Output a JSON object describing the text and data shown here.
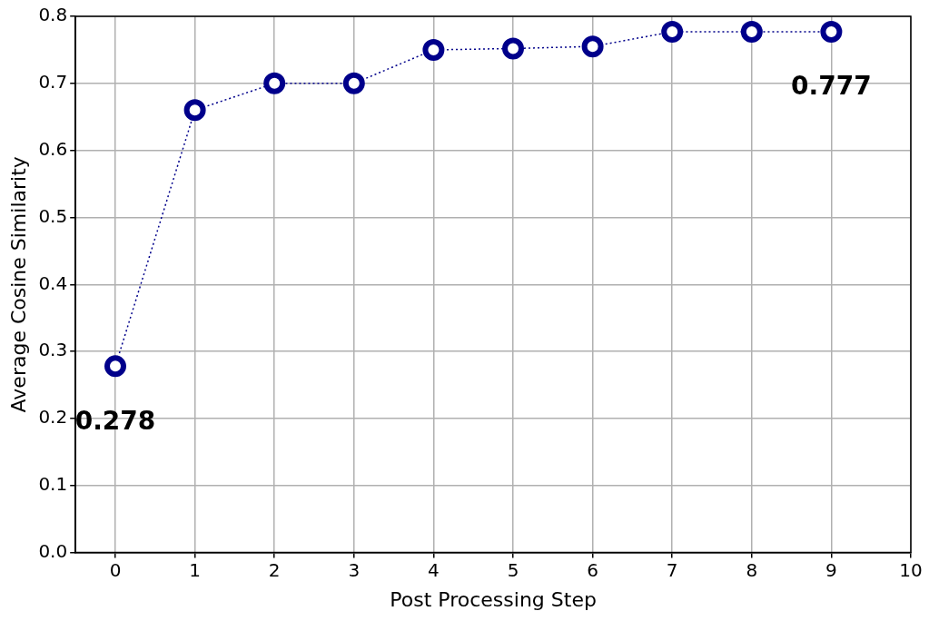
{
  "chart_data": {
    "type": "line",
    "xlabel": "Post Processing Step",
    "ylabel": "Average Cosine Similarity",
    "x": [
      0,
      1,
      2,
      3,
      4,
      5,
      6,
      7,
      8,
      9
    ],
    "series": [
      {
        "color": "#00008b",
        "values": [
          0.278,
          0.66,
          0.7,
          0.7,
          0.75,
          0.752,
          0.755,
          0.777,
          0.777,
          0.777
        ]
      }
    ],
    "xlim": [
      -0.5,
      10
    ],
    "xticks": [
      0,
      1,
      2,
      3,
      4,
      5,
      6,
      7,
      8,
      9,
      10
    ],
    "ylim": [
      0,
      0.8
    ],
    "yticks": [
      {
        "value": 0,
        "label": "0.0"
      },
      0.1,
      0.2,
      0.3,
      0.4,
      0.5,
      0.6,
      0.7,
      0.8
    ],
    "grid": true,
    "marker": "circle",
    "line_style": "dotted",
    "legend": false,
    "annotations": [
      {
        "text": "0.278",
        "x": 0,
        "y": 0.278
      },
      {
        "text": "0.777",
        "x": 9,
        "y": 0.777
      }
    ]
  }
}
